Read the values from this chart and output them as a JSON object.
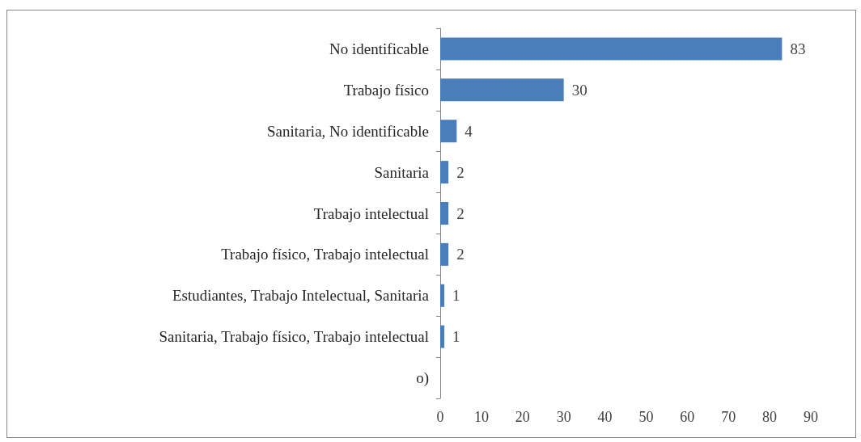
{
  "chart_data": {
    "type": "bar",
    "orientation": "horizontal",
    "categories": [
      "No identificable",
      "Trabajo físico",
      "Sanitaria, No identificable",
      "Sanitaria",
      "Trabajo intelectual",
      "Trabajo físico, Trabajo intelectual",
      "Estudiantes, Trabajo Intelectual, Sanitaria",
      "Sanitaria, Trabajo físico, Trabajo intelectual",
      "o)"
    ],
    "values": [
      83,
      30,
      4,
      2,
      2,
      2,
      1,
      1,
      null
    ],
    "color": "#4a7ebb",
    "xlim": [
      0,
      90
    ],
    "xticks": [
      0,
      10,
      20,
      30,
      40,
      50,
      60,
      70,
      80,
      90
    ],
    "data_labels": true
  }
}
